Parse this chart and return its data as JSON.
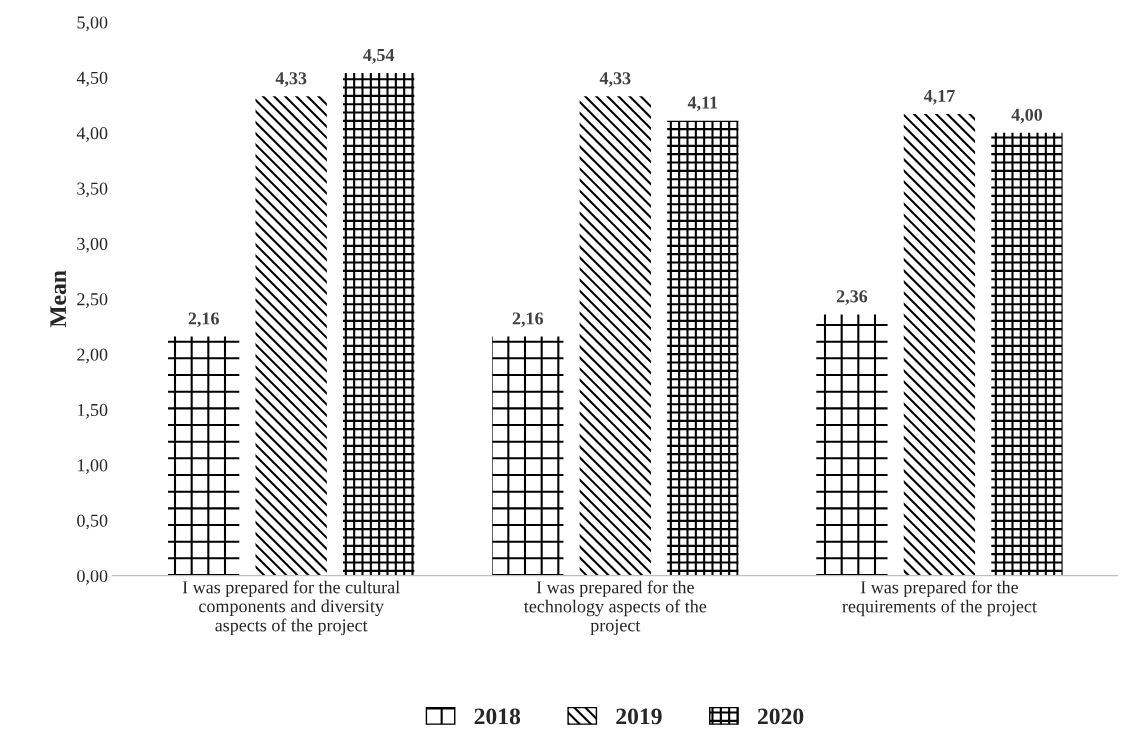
{
  "chart_data": {
    "type": "bar",
    "ylabel": "Mean",
    "categories": [
      "I was prepared for the cultural\ncomponents and diversity\naspects of the project",
      "I was prepared for the\ntechnology aspects of the\nproject",
      "I was prepared for the\nrequirements of the project"
    ],
    "series": [
      {
        "name": "2018",
        "color": "#000000",
        "values": [
          2.16,
          2.16,
          2.36
        ],
        "value_labels": [
          "2,16",
          "2,16",
          "2,36"
        ]
      },
      {
        "name": "2019",
        "color": "#000000",
        "values": [
          4.33,
          4.33,
          4.17
        ],
        "value_labels": [
          "4,33",
          "4,33",
          "4,17"
        ]
      },
      {
        "name": "2020",
        "color": "#000000",
        "values": [
          4.54,
          4.11,
          4.0
        ],
        "value_labels": [
          "4,54",
          "4,11",
          "4,00"
        ]
      }
    ],
    "ylim": [
      0,
      5
    ],
    "yticks": [
      {
        "value": 0,
        "label": "0,00"
      },
      {
        "value": 0.5,
        "label": "0,50"
      },
      {
        "value": 1,
        "label": "1,00"
      },
      {
        "value": 1.5,
        "label": "1,50"
      },
      {
        "value": 2,
        "label": "2,00"
      },
      {
        "value": 2.5,
        "label": "2,50"
      },
      {
        "value": 3,
        "label": "3,00"
      },
      {
        "value": 3.5,
        "label": "3,50"
      },
      {
        "value": 4,
        "label": "4,00"
      },
      {
        "value": 4.5,
        "label": "4,50"
      },
      {
        "value": 5,
        "label": "5,00"
      }
    ],
    "grid": false,
    "legend": "bottom"
  }
}
